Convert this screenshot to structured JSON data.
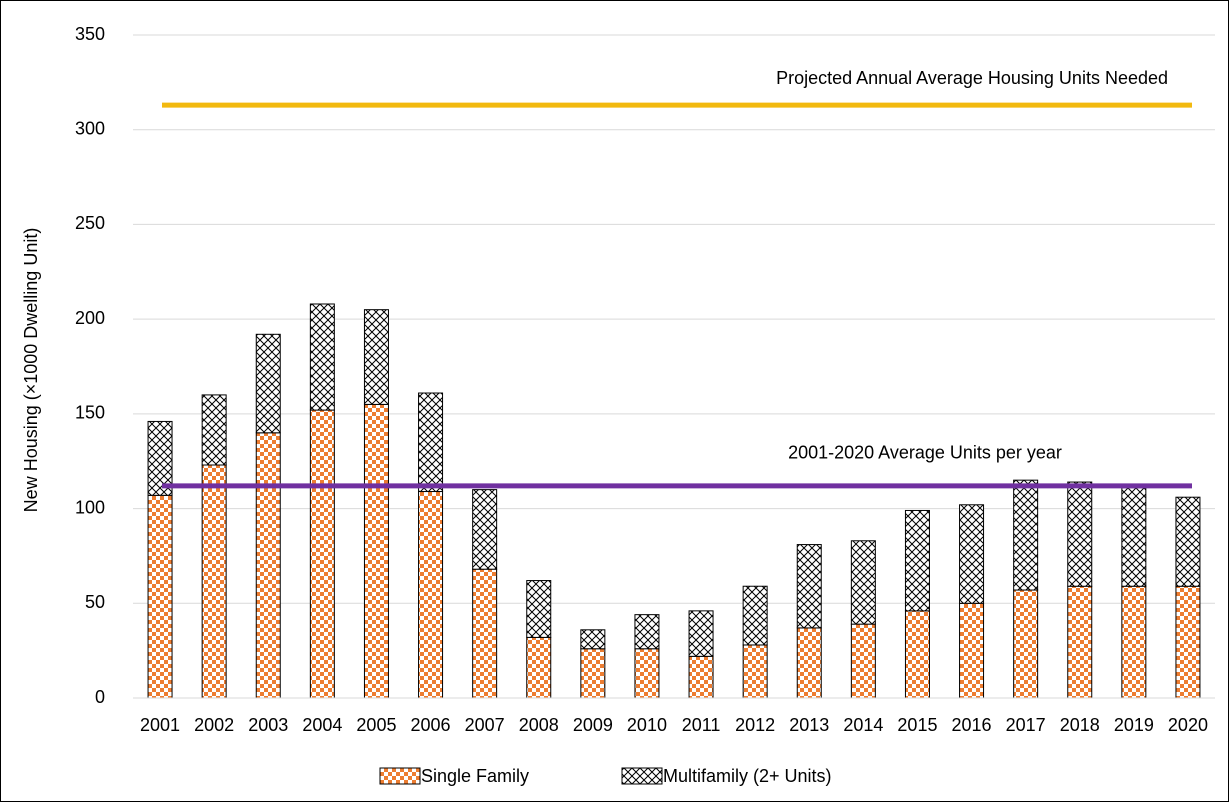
{
  "chart_data": {
    "type": "bar",
    "stacked": true,
    "y_label": "New Housing (×1000 Dwelling Unit)",
    "categories": [
      "2001",
      "2002",
      "2003",
      "2004",
      "2005",
      "2006",
      "2007",
      "2008",
      "2009",
      "2010",
      "2011",
      "2012",
      "2013",
      "2014",
      "2015",
      "2016",
      "2017",
      "2018",
      "2019",
      "2020"
    ],
    "series": [
      {
        "name": "Single Family",
        "color": "#ed7d31",
        "pattern": "checker",
        "values": [
          107,
          123,
          140,
          152,
          155,
          109,
          68,
          32,
          26,
          26,
          22,
          28,
          37,
          39,
          46,
          50,
          57,
          59,
          59,
          59
        ]
      },
      {
        "name": "Multifamily (2+ Units)",
        "color": "#000000",
        "pattern": "crosshatch",
        "values": [
          39,
          37,
          52,
          56,
          50,
          52,
          42,
          30,
          10,
          18,
          24,
          31,
          44,
          44,
          53,
          52,
          58,
          55,
          52,
          47
        ]
      }
    ],
    "reference_lines": [
      {
        "label": "Projected Annual Average Housing Units Needed",
        "value": 313,
        "color": "#f2b90f"
      },
      {
        "label": "2001-2020 Average Units per year",
        "value": 112,
        "color": "#7030a0"
      }
    ],
    "ylim": [
      0,
      350
    ],
    "yticks": [
      0,
      50,
      100,
      150,
      200,
      250,
      300,
      350
    ],
    "grid": true,
    "legend": "bottom"
  }
}
